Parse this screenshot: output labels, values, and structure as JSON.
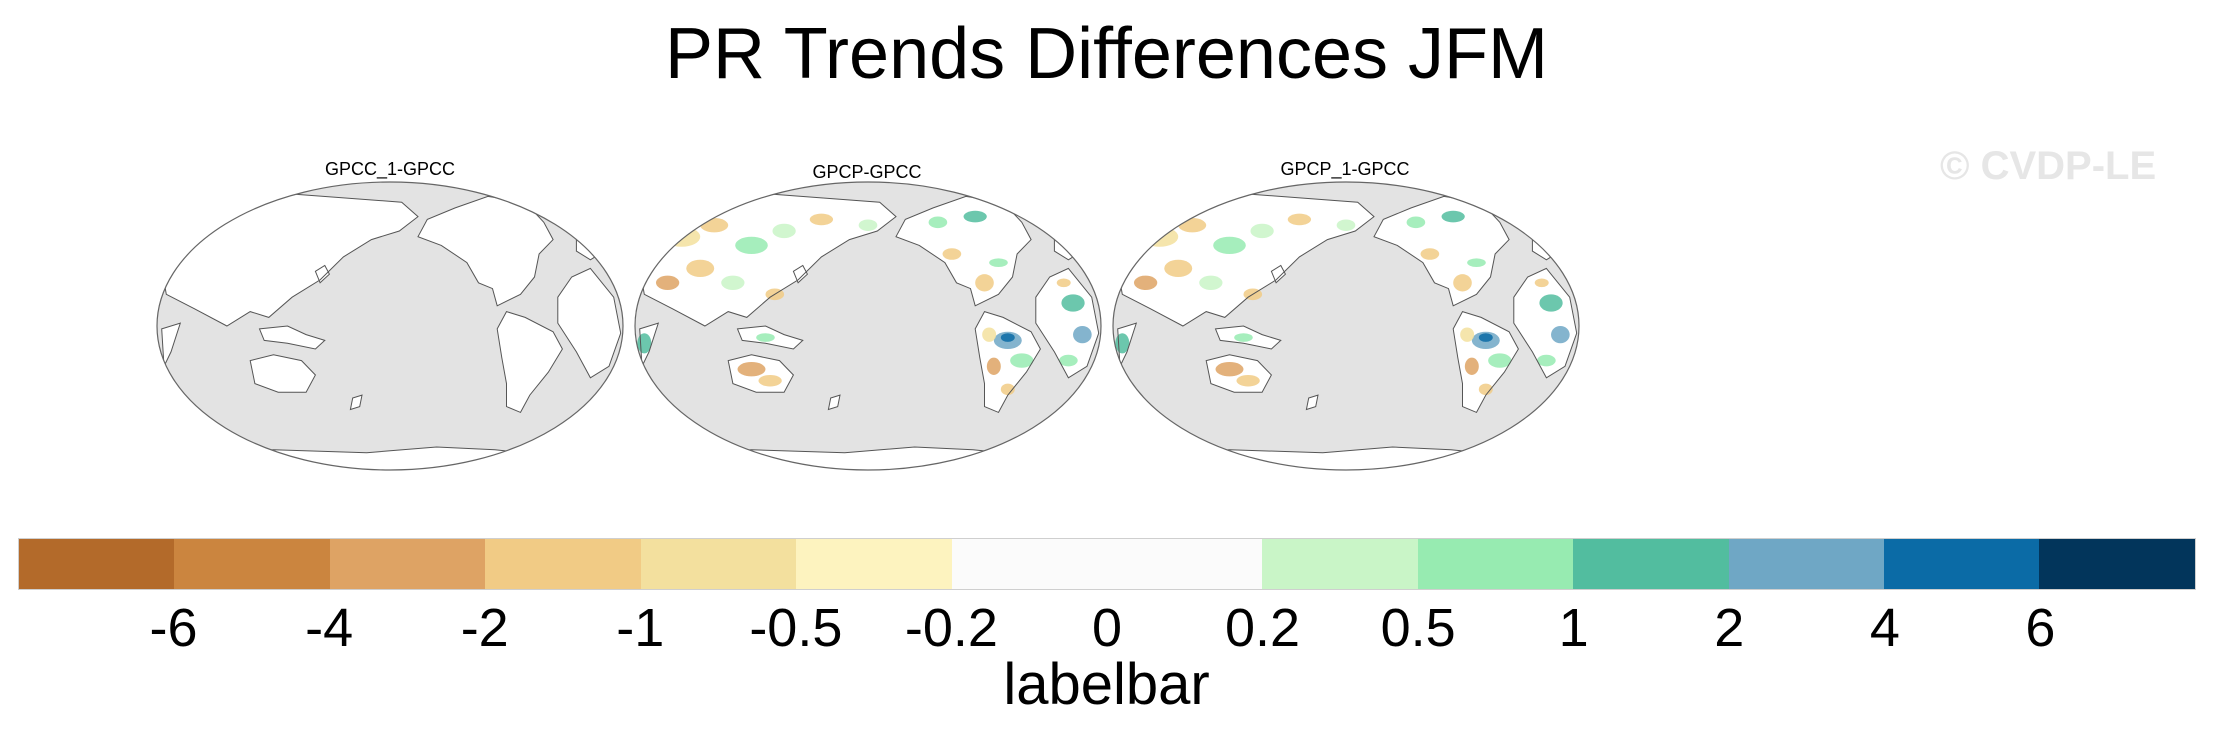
{
  "title": "PR Trends Differences JFM",
  "watermark": "© CVDP-LE",
  "panels": [
    {
      "title": "GPCC_1-GPCC",
      "variant": "blank"
    },
    {
      "title": "GPCP-GPCC",
      "variant": "anomaly"
    },
    {
      "title": "GPCP_1-GPCC",
      "variant": "anomaly"
    }
  ],
  "colors": {
    "ocean": "#e3e3e3",
    "land": "#ffffff",
    "coast": "#555555",
    "palette": [
      "#b36a2a",
      "#cb853f",
      "#dea364",
      "#f1cb85",
      "#f3e09e",
      "#fdf3bf",
      "#fbfbfb",
      "#fbfbfb",
      "#c9f5c7",
      "#97ebb1",
      "#52bd9f",
      "#6fa7c5",
      "#0b6ba6",
      "#02355b"
    ]
  },
  "colorbar": {
    "labels": [
      "-6",
      "-4",
      "-2",
      "-1",
      "-0.5",
      "-0.2",
      "0",
      "0.2",
      "0.5",
      "1",
      "2",
      "4",
      "6"
    ],
    "title": "labelbar"
  }
}
